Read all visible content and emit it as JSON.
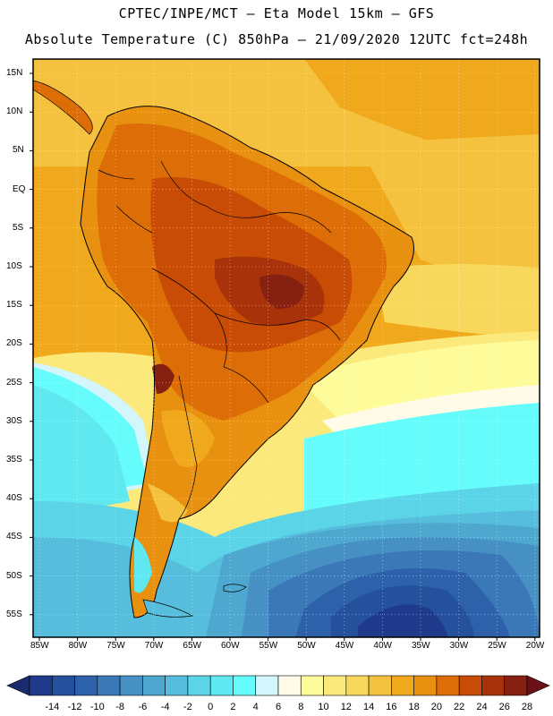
{
  "header": {
    "line1": "CPTEC/INPE/MCT —  Eta Model 15km — GFS",
    "line2": "Absolute Temperature (C) 850hPa — 21/09/2020 12UTC fct=248h"
  },
  "map": {
    "lat_labels": [
      "15N",
      "10N",
      "5N",
      "EQ",
      "5S",
      "10S",
      "15S",
      "20S",
      "25S",
      "30S",
      "35S",
      "40S",
      "45S",
      "50S",
      "55S"
    ],
    "lon_labels": [
      "85W",
      "80W",
      "75W",
      "70W",
      "65W",
      "60W",
      "55W",
      "50W",
      "45W",
      "40W",
      "35W",
      "30W",
      "25W",
      "20W"
    ]
  },
  "colorbar": {
    "labels": [
      "-14",
      "-12",
      "-10",
      "-8",
      "-6",
      "-4",
      "-2",
      "0",
      "2",
      "4",
      "6",
      "8",
      "10",
      "12",
      "14",
      "16",
      "18",
      "20",
      "22",
      "24",
      "26",
      "28"
    ],
    "colors": [
      "#1f3a8a",
      "#25509c",
      "#2d62aa",
      "#3a78b8",
      "#4690c4",
      "#4ea7cf",
      "#56bedc",
      "#5ad4e6",
      "#5fe8f0",
      "#66fcfc",
      "#d2f6fc",
      "#fffbe8",
      "#fefb9a",
      "#fbe97c",
      "#f8d85c",
      "#f4c23e",
      "#f0a81c",
      "#e8900f",
      "#dd6d06",
      "#c84c05",
      "#a8330a",
      "#862010"
    ]
  }
}
